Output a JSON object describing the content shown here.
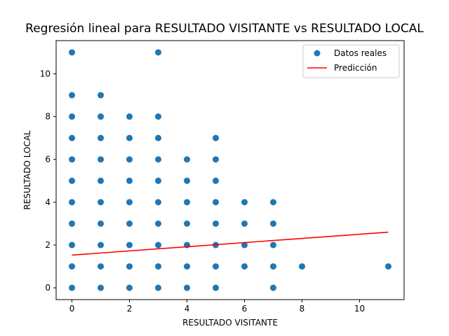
{
  "chart_data": {
    "type": "scatter",
    "title": "Regresión lineal para RESULTADO VISITANTE vs RESULTADO LOCAL",
    "xlabel": "RESULTADO VISITANTE",
    "ylabel": "RESULTADO LOCAL",
    "xlim": [
      -0.55,
      11.55
    ],
    "ylim": [
      -0.55,
      11.55
    ],
    "xticks": [
      0,
      2,
      4,
      6,
      8,
      10
    ],
    "yticks": [
      0,
      2,
      4,
      6,
      8,
      10
    ],
    "grid": false,
    "legend_position": "top-right",
    "series": [
      {
        "name": "Datos reales",
        "type": "scatter",
        "color": "#1f77b4",
        "points": [
          [
            0,
            0
          ],
          [
            0,
            1
          ],
          [
            0,
            2
          ],
          [
            0,
            3
          ],
          [
            0,
            4
          ],
          [
            0,
            5
          ],
          [
            0,
            6
          ],
          [
            0,
            7
          ],
          [
            0,
            8
          ],
          [
            0,
            9
          ],
          [
            0,
            11
          ],
          [
            1,
            0
          ],
          [
            1,
            1
          ],
          [
            1,
            2
          ],
          [
            1,
            3
          ],
          [
            1,
            4
          ],
          [
            1,
            5
          ],
          [
            1,
            6
          ],
          [
            1,
            7
          ],
          [
            1,
            8
          ],
          [
            1,
            9
          ],
          [
            2,
            0
          ],
          [
            2,
            1
          ],
          [
            2,
            2
          ],
          [
            2,
            3
          ],
          [
            2,
            4
          ],
          [
            2,
            5
          ],
          [
            2,
            6
          ],
          [
            2,
            7
          ],
          [
            2,
            8
          ],
          [
            3,
            0
          ],
          [
            3,
            1
          ],
          [
            3,
            2
          ],
          [
            3,
            3
          ],
          [
            3,
            4
          ],
          [
            3,
            5
          ],
          [
            3,
            6
          ],
          [
            3,
            7
          ],
          [
            3,
            8
          ],
          [
            3,
            11
          ],
          [
            4,
            0
          ],
          [
            4,
            1
          ],
          [
            4,
            2
          ],
          [
            4,
            3
          ],
          [
            4,
            4
          ],
          [
            4,
            5
          ],
          [
            4,
            6
          ],
          [
            5,
            0
          ],
          [
            5,
            1
          ],
          [
            5,
            2
          ],
          [
            5,
            3
          ],
          [
            5,
            4
          ],
          [
            5,
            5
          ],
          [
            5,
            6
          ],
          [
            5,
            7
          ],
          [
            6,
            1
          ],
          [
            6,
            2
          ],
          [
            6,
            3
          ],
          [
            6,
            4
          ],
          [
            7,
            0
          ],
          [
            7,
            1
          ],
          [
            7,
            2
          ],
          [
            7,
            3
          ],
          [
            7,
            4
          ],
          [
            8,
            1
          ],
          [
            11,
            1
          ]
        ]
      },
      {
        "name": "Predicción",
        "type": "line",
        "color": "#ff0000",
        "points": [
          [
            0,
            1.53
          ],
          [
            11,
            2.6
          ]
        ]
      }
    ]
  }
}
